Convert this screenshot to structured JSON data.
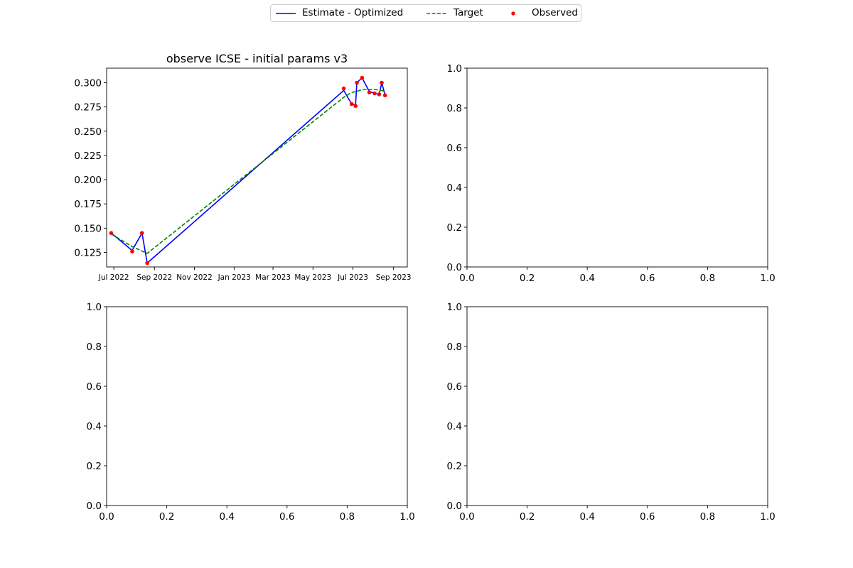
{
  "legend": {
    "items": [
      {
        "label": "Estimate - Optimized",
        "color": "#0000ff",
        "style": "solid-line"
      },
      {
        "label": "Target",
        "color": "#008000",
        "style": "dashed-line"
      },
      {
        "label": "Observed",
        "color": "#ff0000",
        "style": "marker-dot"
      }
    ],
    "placement": "top-center"
  },
  "chart_data": [
    {
      "type": "line",
      "position": "top-left",
      "title": "observe ICSE - initial params v3",
      "xlabel": "",
      "ylabel": "",
      "x_axis": "date",
      "xlim": [
        "2022-06-20",
        "2023-09-22"
      ],
      "ylim": [
        0.11,
        0.315
      ],
      "grid": false,
      "x_ticks": [
        {
          "date": "2022-07-01",
          "label": "Jul 2022"
        },
        {
          "date": "2022-09-01",
          "label": "Sep 2022"
        },
        {
          "date": "2022-11-01",
          "label": "Nov 2022"
        },
        {
          "date": "2023-01-01",
          "label": "Jan 2023"
        },
        {
          "date": "2023-03-01",
          "label": "Mar 2023"
        },
        {
          "date": "2023-05-01",
          "label": "May 2023"
        },
        {
          "date": "2023-07-01",
          "label": "Jul 2023"
        },
        {
          "date": "2023-09-01",
          "label": "Sep 2023"
        }
      ],
      "y_ticks": [
        0.125,
        0.15,
        0.175,
        0.2,
        0.225,
        0.25,
        0.275,
        0.3
      ],
      "y_tick_labels": [
        "0.125",
        "0.150",
        "0.175",
        "0.200",
        "0.225",
        "0.250",
        "0.275",
        "0.300"
      ],
      "series": [
        {
          "name": "Estimate - Optimized",
          "color": "#0000ff",
          "style": "solid",
          "x": [
            "2022-06-27",
            "2022-07-29",
            "2022-08-13",
            "2022-08-21",
            "2023-06-17",
            "2023-06-29",
            "2023-07-05",
            "2023-07-07",
            "2023-07-15",
            "2023-07-26",
            "2023-08-03",
            "2023-08-10",
            "2023-08-14",
            "2023-08-19"
          ],
          "y": [
            0.145,
            0.127,
            0.145,
            0.114,
            0.292,
            0.278,
            0.277,
            0.3,
            0.305,
            0.291,
            0.289,
            0.288,
            0.3,
            0.287
          ]
        },
        {
          "name": "Target",
          "color": "#008000",
          "style": "dashed",
          "x": [
            "2022-06-27",
            "2022-07-29",
            "2022-08-21",
            "2023-06-17",
            "2023-06-29",
            "2023-07-07",
            "2023-07-15",
            "2023-07-26",
            "2023-08-03",
            "2023-08-14",
            "2023-08-19"
          ],
          "y": [
            0.144,
            0.131,
            0.124,
            0.285,
            0.29,
            0.291,
            0.293,
            0.293,
            0.293,
            0.292,
            0.291
          ]
        },
        {
          "name": "Observed",
          "color": "#ff0000",
          "style": "points",
          "x": [
            "2022-06-27",
            "2022-07-29",
            "2022-08-13",
            "2022-08-21",
            "2023-06-17",
            "2023-06-29",
            "2023-07-05",
            "2023-07-07",
            "2023-07-15",
            "2023-07-26",
            "2023-08-03",
            "2023-08-10",
            "2023-08-14",
            "2023-08-19"
          ],
          "y": [
            0.145,
            0.126,
            0.145,
            0.114,
            0.294,
            0.278,
            0.276,
            0.3,
            0.305,
            0.29,
            0.289,
            0.288,
            0.3,
            0.287
          ]
        }
      ]
    },
    {
      "type": "line",
      "position": "top-right",
      "title": "",
      "xlim": [
        0,
        1
      ],
      "ylim": [
        0,
        1
      ],
      "grid": false,
      "x_ticks": [
        0.0,
        0.2,
        0.4,
        0.6,
        0.8,
        1.0
      ],
      "x_tick_labels": [
        "0.0",
        "0.2",
        "0.4",
        "0.6",
        "0.8",
        "1.0"
      ],
      "y_ticks": [
        0.0,
        0.2,
        0.4,
        0.6,
        0.8,
        1.0
      ],
      "y_tick_labels": [
        "0.0",
        "0.2",
        "0.4",
        "0.6",
        "0.8",
        "1.0"
      ],
      "series": []
    },
    {
      "type": "line",
      "position": "bottom-left",
      "title": "",
      "xlim": [
        0,
        1
      ],
      "ylim": [
        0,
        1
      ],
      "grid": false,
      "x_ticks": [
        0.0,
        0.2,
        0.4,
        0.6,
        0.8,
        1.0
      ],
      "x_tick_labels": [
        "0.0",
        "0.2",
        "0.4",
        "0.6",
        "0.8",
        "1.0"
      ],
      "y_ticks": [
        0.0,
        0.2,
        0.4,
        0.6,
        0.8,
        1.0
      ],
      "y_tick_labels": [
        "0.0",
        "0.2",
        "0.4",
        "0.6",
        "0.8",
        "1.0"
      ],
      "series": []
    },
    {
      "type": "line",
      "position": "bottom-right",
      "title": "",
      "xlim": [
        0,
        1
      ],
      "ylim": [
        0,
        1
      ],
      "grid": false,
      "x_ticks": [
        0.0,
        0.2,
        0.4,
        0.6,
        0.8,
        1.0
      ],
      "x_tick_labels": [
        "0.0",
        "0.2",
        "0.4",
        "0.6",
        "0.8",
        "1.0"
      ],
      "y_ticks": [
        0.0,
        0.2,
        0.4,
        0.6,
        0.8,
        1.0
      ],
      "y_tick_labels": [
        "0.0",
        "0.2",
        "0.4",
        "0.6",
        "0.8",
        "1.0"
      ],
      "series": []
    }
  ]
}
